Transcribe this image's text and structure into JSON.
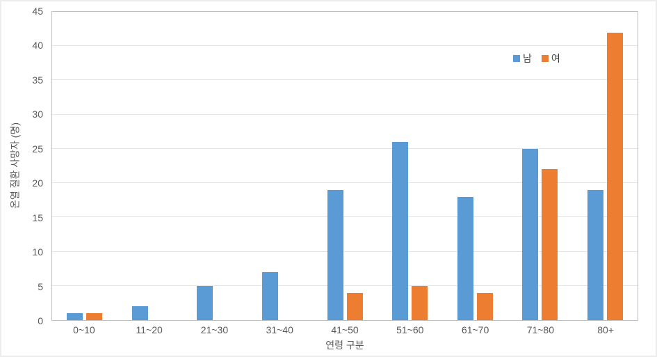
{
  "chart_data": {
    "type": "bar",
    "title": "",
    "xlabel": "연령 구분",
    "ylabel": "온열 질환 사망자 (명)",
    "categories": [
      "0~10",
      "11~20",
      "21~30",
      "31~40",
      "41~50",
      "51~60",
      "61~70",
      "71~80",
      "80+"
    ],
    "series": [
      {
        "name": "남",
        "color": "#5B9BD5",
        "values": [
          1,
          2,
          5,
          7,
          19,
          26,
          18,
          25,
          19
        ]
      },
      {
        "name": "여",
        "color": "#ED7D31",
        "values": [
          1,
          0,
          0,
          0,
          4,
          5,
          4,
          22,
          42
        ]
      }
    ],
    "ylim": [
      0,
      45
    ],
    "yticks": [
      0,
      5,
      10,
      15,
      20,
      25,
      30,
      35,
      40,
      45
    ],
    "grid": true,
    "legend_position": "top-right-inside"
  },
  "colors": {
    "gridline": "#E4E4E4",
    "plot_border": "#BFBFBF",
    "tick_label": "#595959",
    "legend_text": "#404040",
    "background": "#FFFFFF"
  }
}
